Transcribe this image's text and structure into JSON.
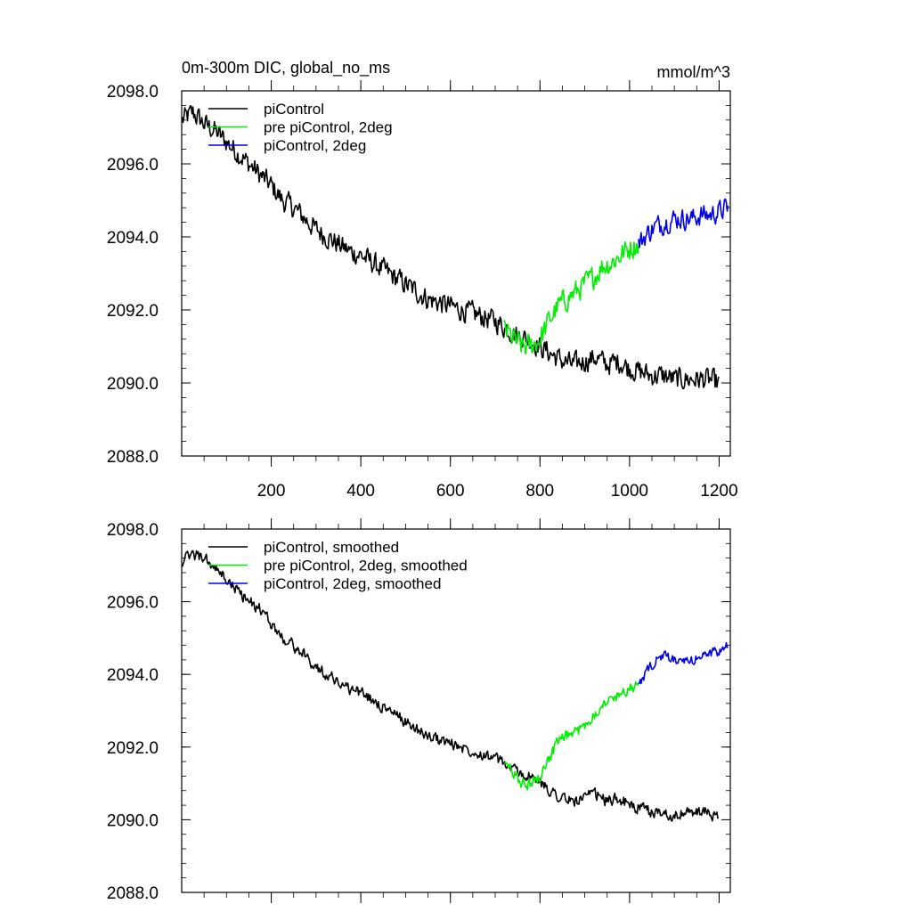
{
  "chart_data": [
    {
      "type": "line",
      "title": "0m-300m DIC, global_no_ms",
      "units": "mmol/m^3",
      "xlim": [
        0,
        1225
      ],
      "ylim": [
        2088.0,
        2098.0
      ],
      "x_ticks": [
        200,
        400,
        600,
        800,
        1000,
        1200
      ],
      "x_tick_labels": [
        "200",
        "400",
        "600",
        "800",
        "1000",
        "1200"
      ],
      "y_ticks": [
        2088.0,
        2090.0,
        2092.0,
        2094.0,
        2096.0,
        2098.0
      ],
      "y_tick_labels": [
        "2088.0",
        "2090.0",
        "2092.0",
        "2094.0",
        "2096.0",
        "2098.0"
      ],
      "grid": false,
      "legend_position": "top-left",
      "series": [
        {
          "name": "piControl",
          "color": "#000000",
          "x": [
            1,
            25,
            50,
            75,
            100,
            125,
            150,
            175,
            200,
            225,
            250,
            275,
            300,
            325,
            350,
            375,
            400,
            425,
            450,
            475,
            500,
            525,
            550,
            575,
            600,
            625,
            650,
            675,
            700,
            725,
            750,
            775,
            800,
            825,
            850,
            875,
            900,
            925,
            950,
            975,
            1000,
            1025,
            1050,
            1075,
            1100,
            1125,
            1150,
            1175,
            1200
          ],
          "y": [
            2097.2,
            2097.4,
            2097.1,
            2096.9,
            2096.6,
            2096.3,
            2096.0,
            2095.7,
            2095.4,
            2095.0,
            2094.8,
            2094.5,
            2094.2,
            2094.0,
            2093.8,
            2093.6,
            2093.5,
            2093.3,
            2093.1,
            2092.9,
            2092.7,
            2092.5,
            2092.3,
            2092.2,
            2092.1,
            2092.0,
            2091.9,
            2091.8,
            2091.7,
            2091.5,
            2091.3,
            2091.2,
            2091.0,
            2090.8,
            2090.6,
            2090.5,
            2090.6,
            2090.7,
            2090.5,
            2090.6,
            2090.4,
            2090.3,
            2090.2,
            2090.2,
            2090.1,
            2090.1,
            2090.1,
            2090.1,
            2090.0
          ],
          "noise": 0.42
        },
        {
          "name": "pre piControl, 2deg",
          "color": "#00ee00",
          "x": [
            720,
            740,
            760,
            780,
            800,
            820,
            840,
            860,
            880,
            900,
            920,
            940,
            960,
            980,
            1000,
            1020
          ],
          "y": [
            2091.5,
            2091.2,
            2091.0,
            2091.0,
            2091.2,
            2091.7,
            2092.1,
            2092.3,
            2092.5,
            2092.7,
            2092.9,
            2093.2,
            2093.3,
            2093.5,
            2093.7,
            2093.8
          ],
          "noise": 0.45
        },
        {
          "name": "piControl, 2deg",
          "color": "#0000ee",
          "x": [
            1020,
            1040,
            1060,
            1080,
            1100,
            1120,
            1140,
            1160,
            1180,
            1200,
            1220
          ],
          "y": [
            2093.8,
            2094.1,
            2094.3,
            2094.4,
            2094.5,
            2094.5,
            2094.5,
            2094.6,
            2094.6,
            2094.7,
            2094.8
          ],
          "noise": 0.4
        }
      ]
    },
    {
      "type": "line",
      "title": "",
      "units": "",
      "xlim": [
        0,
        1225
      ],
      "ylim": [
        2088.0,
        2098.0
      ],
      "x_ticks": [
        200,
        400,
        600,
        800,
        1000,
        1200
      ],
      "x_tick_labels": [],
      "y_ticks": [
        2088.0,
        2090.0,
        2092.0,
        2094.0,
        2096.0,
        2098.0
      ],
      "y_tick_labels": [
        "2088.0",
        "2090.0",
        "2092.0",
        "2094.0",
        "2096.0",
        "2098.0"
      ],
      "grid": false,
      "legend_position": "top-left",
      "series": [
        {
          "name": "piControl, smoothed",
          "color": "#000000",
          "x": [
            1,
            25,
            50,
            75,
            100,
            125,
            150,
            175,
            200,
            225,
            250,
            275,
            300,
            325,
            350,
            375,
            400,
            425,
            450,
            475,
            500,
            525,
            550,
            575,
            600,
            625,
            650,
            675,
            700,
            725,
            750,
            775,
            800,
            825,
            850,
            875,
            900,
            925,
            950,
            975,
            1000,
            1025,
            1050,
            1075,
            1100,
            1125,
            1150,
            1175,
            1200
          ],
          "y": [
            2097.1,
            2097.3,
            2097.2,
            2096.9,
            2096.6,
            2096.3,
            2096.0,
            2095.8,
            2095.4,
            2095.0,
            2094.8,
            2094.5,
            2094.2,
            2094.0,
            2093.8,
            2093.6,
            2093.5,
            2093.3,
            2093.1,
            2092.9,
            2092.7,
            2092.5,
            2092.3,
            2092.2,
            2092.1,
            2092.0,
            2091.9,
            2091.8,
            2091.7,
            2091.5,
            2091.3,
            2091.2,
            2091.0,
            2090.8,
            2090.6,
            2090.5,
            2090.6,
            2090.7,
            2090.5,
            2090.6,
            2090.4,
            2090.3,
            2090.2,
            2090.2,
            2090.1,
            2090.2,
            2090.2,
            2090.2,
            2090.0
          ],
          "noise": 0.22
        },
        {
          "name": "pre piControl, 2deg, smoothed",
          "color": "#00ee00",
          "x": [
            720,
            740,
            760,
            780,
            800,
            820,
            840,
            860,
            880,
            900,
            920,
            940,
            960,
            980,
            1000,
            1020
          ],
          "y": [
            2091.6,
            2091.3,
            2091.0,
            2091.0,
            2091.2,
            2091.7,
            2092.1,
            2092.3,
            2092.4,
            2092.6,
            2092.9,
            2093.2,
            2093.3,
            2093.5,
            2093.6,
            2093.7
          ],
          "noise": 0.22
        },
        {
          "name": "piControl, 2deg, smoothed",
          "color": "#0000ee",
          "x": [
            1020,
            1040,
            1060,
            1080,
            1100,
            1120,
            1140,
            1160,
            1180,
            1200,
            1220
          ],
          "y": [
            2093.7,
            2094.1,
            2094.4,
            2094.5,
            2094.4,
            2094.3,
            2094.4,
            2094.5,
            2094.6,
            2094.6,
            2094.8
          ],
          "noise": 0.18
        }
      ]
    }
  ]
}
